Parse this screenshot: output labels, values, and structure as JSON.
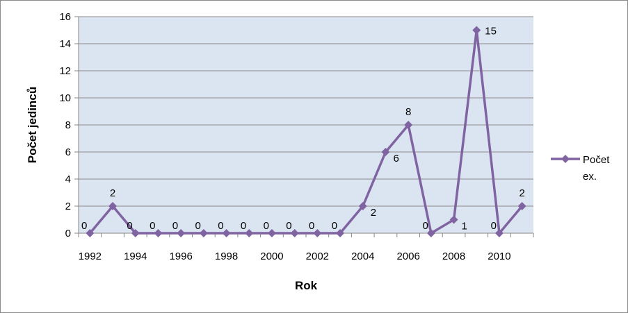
{
  "chart_data": {
    "type": "line",
    "title": "",
    "xlabel": "Rok",
    "ylabel": "Počet jedinců",
    "x": [
      1992,
      1993,
      1994,
      1995,
      1996,
      1997,
      1998,
      1999,
      2000,
      2001,
      2002,
      2003,
      2004,
      2005,
      2006,
      2007,
      2008,
      2009,
      2010,
      2011
    ],
    "x_tick_labels": [
      "1992",
      "1994",
      "1996",
      "1998",
      "2000",
      "2002",
      "2004",
      "2006",
      "2008",
      "2010"
    ],
    "y_tick_labels": [
      "0",
      "2",
      "4",
      "6",
      "8",
      "10",
      "12",
      "14",
      "16"
    ],
    "ylim": [
      0,
      16
    ],
    "grid": true,
    "legend_position": "right",
    "series": [
      {
        "name": "Počet ex.",
        "legend_lines": [
          "Počet",
          "ex."
        ],
        "values": [
          0,
          2,
          0,
          0,
          0,
          0,
          0,
          0,
          0,
          0,
          0,
          0,
          2,
          6,
          8,
          0,
          1,
          15,
          0,
          2
        ],
        "data_labels": [
          "0",
          "2",
          "0",
          "0",
          "0",
          "0",
          "0",
          "0",
          "0",
          "0",
          "0",
          "0",
          "2",
          "6",
          "8",
          "0",
          "1",
          "15",
          "0",
          "2"
        ],
        "color": "#8064a2"
      }
    ],
    "colors": {
      "plot_background": "#dbe5f1",
      "gridline": "#8c8c8c",
      "axis": "#868686"
    }
  }
}
